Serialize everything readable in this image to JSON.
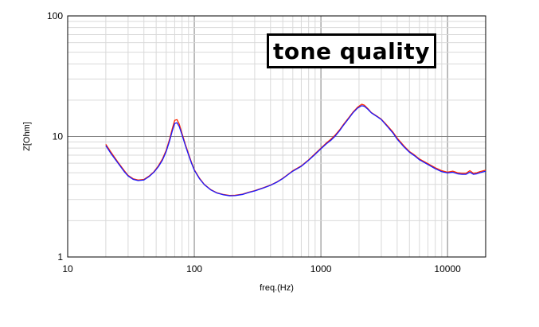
{
  "chart_data": {
    "type": "line",
    "title": "",
    "xlabel": "freq.(Hz)",
    "ylabel": "Z[Ohm]",
    "xscale": "log",
    "yscale": "log",
    "xlim": [
      10,
      20000
    ],
    "ylim": [
      1,
      100
    ],
    "x_ticks": [
      10,
      100,
      1000,
      10000
    ],
    "x_tick_labels": [
      "10",
      "100",
      "1000",
      "10000"
    ],
    "y_ticks": [
      1,
      10,
      100
    ],
    "y_tick_labels": [
      "1",
      "10",
      "100"
    ],
    "grid": true,
    "annotation": "tone quality",
    "series": [
      {
        "color": "#ff2a00",
        "points": [
          [
            20,
            8.6
          ],
          [
            22,
            7.4
          ],
          [
            25,
            6.1
          ],
          [
            28,
            5.2
          ],
          [
            30,
            4.75
          ],
          [
            33,
            4.45
          ],
          [
            36,
            4.35
          ],
          [
            40,
            4.4
          ],
          [
            44,
            4.7
          ],
          [
            48,
            5.1
          ],
          [
            52,
            5.7
          ],
          [
            56,
            6.5
          ],
          [
            60,
            7.7
          ],
          [
            64,
            9.6
          ],
          [
            67,
            11.6
          ],
          [
            70,
            13.6
          ],
          [
            73,
            13.8
          ],
          [
            76,
            12.7
          ],
          [
            80,
            10.6
          ],
          [
            85,
            8.6
          ],
          [
            90,
            7.2
          ],
          [
            95,
            6.1
          ],
          [
            100,
            5.3
          ],
          [
            110,
            4.5
          ],
          [
            120,
            4.0
          ],
          [
            135,
            3.62
          ],
          [
            150,
            3.42
          ],
          [
            170,
            3.3
          ],
          [
            190,
            3.24
          ],
          [
            210,
            3.25
          ],
          [
            240,
            3.32
          ],
          [
            270,
            3.45
          ],
          [
            300,
            3.55
          ],
          [
            350,
            3.75
          ],
          [
            400,
            3.95
          ],
          [
            450,
            4.2
          ],
          [
            500,
            4.5
          ],
          [
            550,
            4.85
          ],
          [
            600,
            5.2
          ],
          [
            700,
            5.7
          ],
          [
            800,
            6.4
          ],
          [
            900,
            7.2
          ],
          [
            1000,
            8.0
          ],
          [
            1100,
            8.8
          ],
          [
            1200,
            9.5
          ],
          [
            1300,
            10.3
          ],
          [
            1400,
            11.3
          ],
          [
            1500,
            12.5
          ],
          [
            1650,
            14.2
          ],
          [
            1800,
            16.0
          ],
          [
            1950,
            17.5
          ],
          [
            2100,
            18.5
          ],
          [
            2200,
            18.2
          ],
          [
            2350,
            17.0
          ],
          [
            2500,
            15.8
          ],
          [
            2750,
            14.8
          ],
          [
            3000,
            13.9
          ],
          [
            3300,
            12.5
          ],
          [
            3700,
            10.9
          ],
          [
            4000,
            9.7
          ],
          [
            4500,
            8.4
          ],
          [
            5000,
            7.5
          ],
          [
            5500,
            7.0
          ],
          [
            6000,
            6.5
          ],
          [
            7000,
            5.95
          ],
          [
            8000,
            5.5
          ],
          [
            9000,
            5.2
          ],
          [
            10000,
            5.05
          ],
          [
            11000,
            5.15
          ],
          [
            12000,
            5.0
          ],
          [
            13000,
            4.95
          ],
          [
            14000,
            4.95
          ],
          [
            15000,
            5.2
          ],
          [
            16000,
            4.95
          ],
          [
            17000,
            5.0
          ],
          [
            18000,
            5.1
          ],
          [
            20000,
            5.25
          ]
        ]
      },
      {
        "color": "#1a1aff",
        "points": [
          [
            20,
            8.4
          ],
          [
            22,
            7.2
          ],
          [
            25,
            6.0
          ],
          [
            28,
            5.1
          ],
          [
            30,
            4.7
          ],
          [
            33,
            4.4
          ],
          [
            36,
            4.3
          ],
          [
            40,
            4.35
          ],
          [
            44,
            4.65
          ],
          [
            48,
            5.05
          ],
          [
            52,
            5.6
          ],
          [
            56,
            6.35
          ],
          [
            60,
            7.5
          ],
          [
            64,
            9.3
          ],
          [
            67,
            11.1
          ],
          [
            70,
            12.8
          ],
          [
            73,
            13.0
          ],
          [
            76,
            12.1
          ],
          [
            80,
            10.3
          ],
          [
            85,
            8.4
          ],
          [
            90,
            7.05
          ],
          [
            95,
            6.0
          ],
          [
            100,
            5.25
          ],
          [
            110,
            4.45
          ],
          [
            120,
            3.98
          ],
          [
            135,
            3.6
          ],
          [
            150,
            3.4
          ],
          [
            170,
            3.28
          ],
          [
            190,
            3.22
          ],
          [
            210,
            3.23
          ],
          [
            240,
            3.3
          ],
          [
            270,
            3.43
          ],
          [
            300,
            3.53
          ],
          [
            350,
            3.73
          ],
          [
            400,
            3.93
          ],
          [
            450,
            4.18
          ],
          [
            500,
            4.47
          ],
          [
            550,
            4.82
          ],
          [
            600,
            5.15
          ],
          [
            700,
            5.65
          ],
          [
            800,
            6.35
          ],
          [
            900,
            7.1
          ],
          [
            1000,
            7.9
          ],
          [
            1100,
            8.65
          ],
          [
            1200,
            9.3
          ],
          [
            1300,
            10.1
          ],
          [
            1400,
            11.1
          ],
          [
            1500,
            12.3
          ],
          [
            1650,
            14.0
          ],
          [
            1800,
            15.8
          ],
          [
            1950,
            17.2
          ],
          [
            2100,
            18.0
          ],
          [
            2200,
            17.8
          ],
          [
            2350,
            16.8
          ],
          [
            2500,
            15.7
          ],
          [
            2750,
            14.7
          ],
          [
            3000,
            13.8
          ],
          [
            3300,
            12.3
          ],
          [
            3700,
            10.7
          ],
          [
            4000,
            9.5
          ],
          [
            4500,
            8.25
          ],
          [
            5000,
            7.4
          ],
          [
            5500,
            6.9
          ],
          [
            6000,
            6.4
          ],
          [
            7000,
            5.85
          ],
          [
            8000,
            5.4
          ],
          [
            9000,
            5.1
          ],
          [
            10000,
            4.98
          ],
          [
            11000,
            5.05
          ],
          [
            12000,
            4.9
          ],
          [
            13000,
            4.85
          ],
          [
            14000,
            4.85
          ],
          [
            15000,
            5.05
          ],
          [
            16000,
            4.85
          ],
          [
            17000,
            4.9
          ],
          [
            18000,
            5.0
          ],
          [
            20000,
            5.15
          ]
        ]
      }
    ]
  }
}
